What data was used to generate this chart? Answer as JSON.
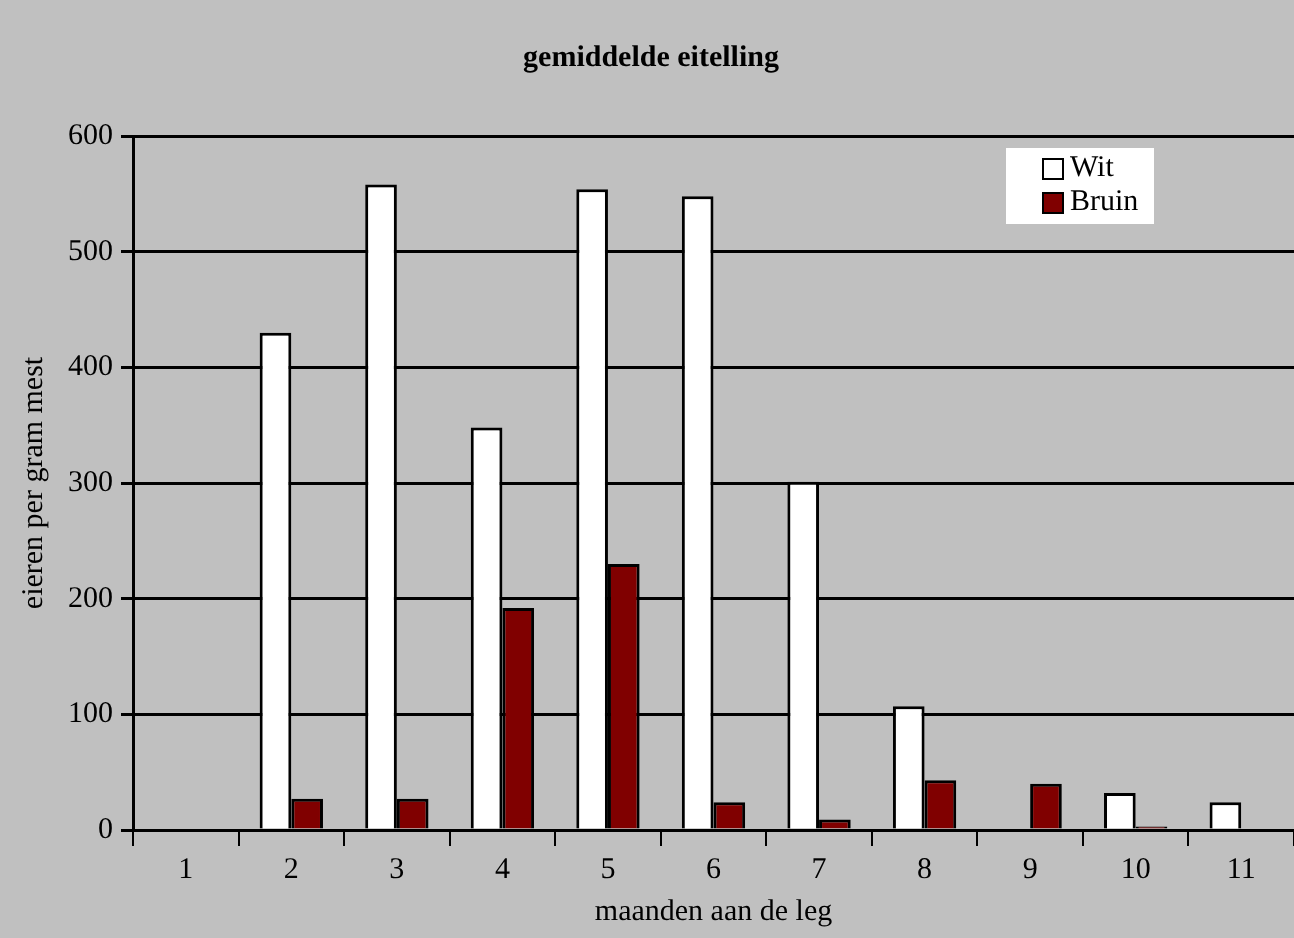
{
  "chart_data": {
    "type": "bar",
    "title": "gemiddelde eitelling",
    "xlabel": "maanden aan de leg",
    "ylabel": "eieren per gram mest",
    "categories": [
      "1",
      "2",
      "3",
      "4",
      "5",
      "6",
      "7",
      "8",
      "9",
      "10",
      "11"
    ],
    "series": [
      {
        "name": "Wit",
        "color": "#ffffff",
        "values": [
          0,
          430,
          558,
          348,
          554,
          548,
          301,
          107,
          0,
          32,
          24
        ]
      },
      {
        "name": "Bruin",
        "color": "#800000",
        "values": [
          0,
          27,
          27,
          192,
          230,
          24,
          9,
          43,
          40,
          3,
          0
        ]
      }
    ],
    "ylim": [
      0,
      600
    ],
    "yticks": [
      0,
      100,
      200,
      300,
      400,
      500,
      600
    ],
    "grid": "y",
    "legend": "top right"
  }
}
